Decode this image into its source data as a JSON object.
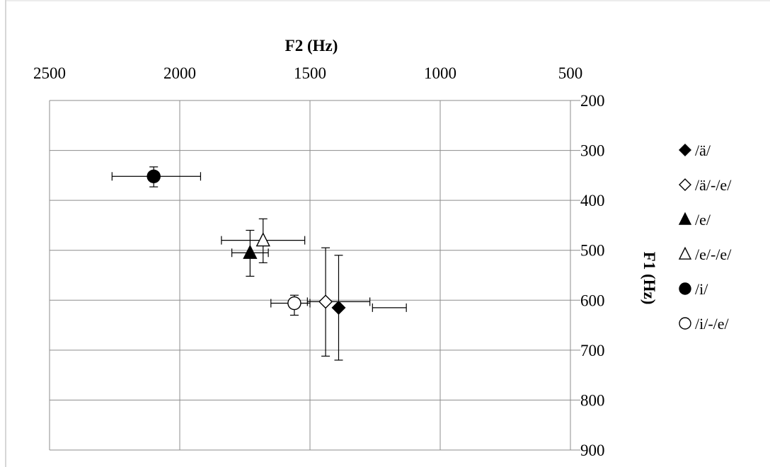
{
  "chart_data": {
    "type": "scatter",
    "title": "",
    "xlabel": "F2 (Hz)",
    "ylabel": "F1 (Hz)",
    "x_axis": {
      "position": "top",
      "reversed": true,
      "range": [
        500,
        2500
      ],
      "ticks": [
        2500,
        2000,
        1500,
        1000,
        500
      ]
    },
    "y_axis": {
      "position": "right",
      "reversed": true,
      "range": [
        200,
        900
      ],
      "ticks": [
        200,
        300,
        400,
        500,
        600,
        700,
        800,
        900
      ]
    },
    "grid": true,
    "legend_position": "right",
    "series": [
      {
        "name": "/ä/",
        "marker": "diamond-filled",
        "x": 1390,
        "y": 615,
        "x_err": [
          1130,
          1260
        ],
        "y_err": [
          510,
          720
        ]
      },
      {
        "name": "/ä/-/e/",
        "marker": "diamond-open",
        "x": 1440,
        "y": 603,
        "x_err": [
          1510,
          1270
        ],
        "y_err": [
          495,
          712
        ]
      },
      {
        "name": "/e/",
        "marker": "triangle-filled",
        "x": 1730,
        "y": 505,
        "x_err": [
          1800,
          1660
        ],
        "y_err": [
          460,
          552
        ]
      },
      {
        "name": "/e/-/e/",
        "marker": "triangle-open",
        "x": 1680,
        "y": 480,
        "x_err": [
          1840,
          1520
        ],
        "y_err": [
          437,
          525
        ]
      },
      {
        "name": "/i/",
        "marker": "circle-filled",
        "x": 2100,
        "y": 352,
        "x_err": [
          2260,
          1920
        ],
        "y_err": [
          333,
          373
        ]
      },
      {
        "name": "/i/-/e/",
        "marker": "circle-open",
        "x": 1560,
        "y": 606,
        "x_err": [
          1650,
          1500
        ],
        "y_err": [
          590,
          630
        ]
      }
    ]
  }
}
